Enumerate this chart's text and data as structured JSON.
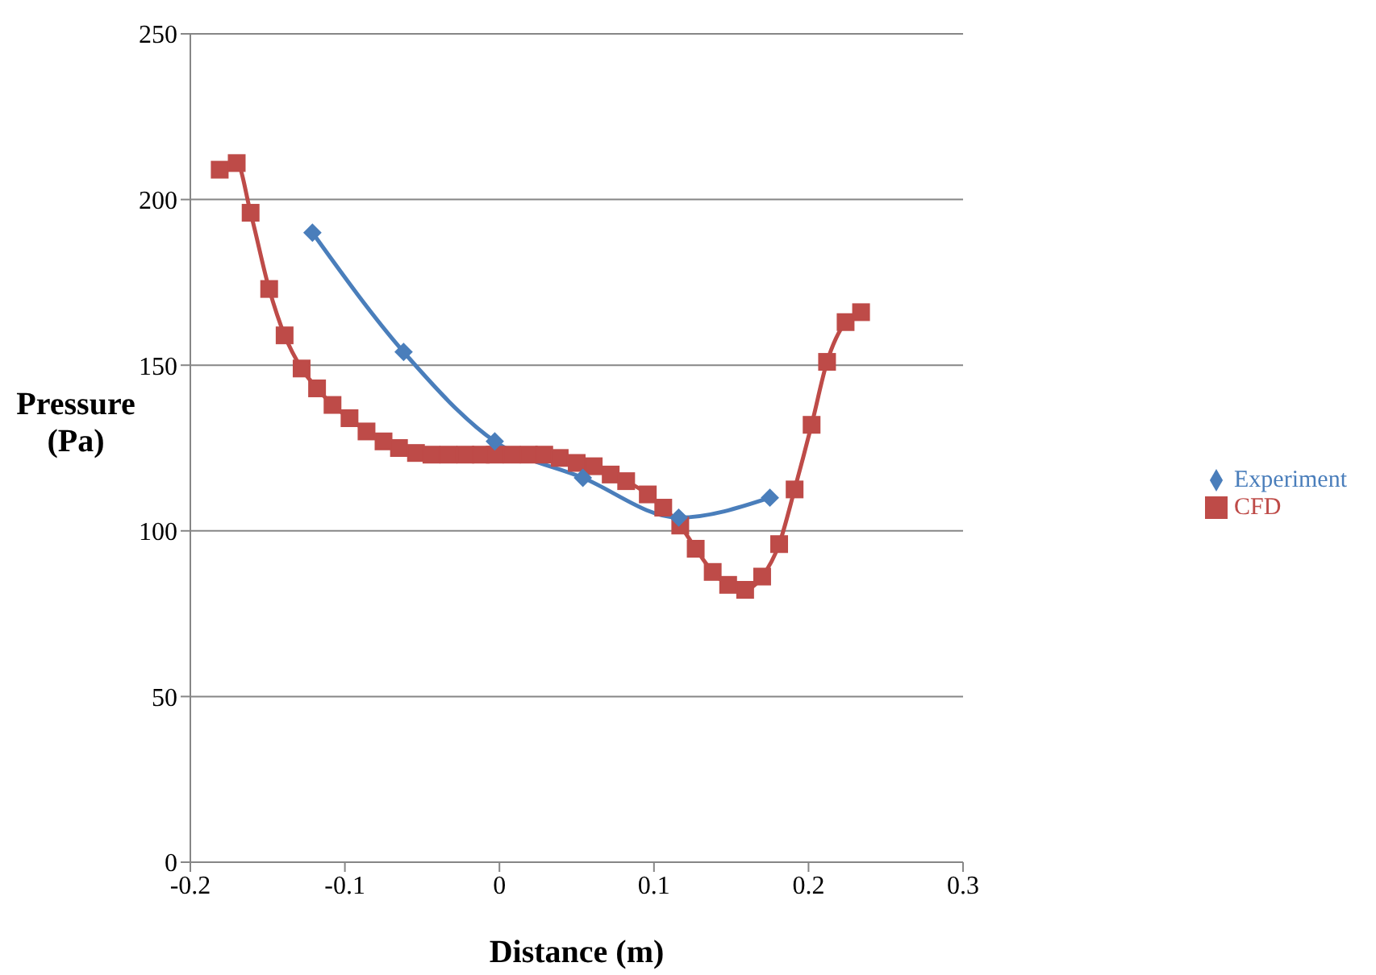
{
  "chart_data": {
    "type": "line",
    "xlabel": "Distance (m)",
    "ylabel": "Pressure (Pa)",
    "xlim": [
      -0.2,
      0.3
    ],
    "xticks": [
      -0.2,
      -0.1,
      0,
      0.1,
      0.2,
      0.3
    ],
    "ylim": [
      0,
      250
    ],
    "yticks": [
      0,
      50,
      100,
      150,
      200,
      250
    ],
    "grid": "y",
    "legend": "right",
    "line_style": "solid",
    "series": [
      {
        "name": "Experiment",
        "color": "#4a7ebb",
        "marker": "diamond",
        "x": [
          -0.121,
          -0.062,
          -0.003,
          0.054,
          0.116,
          0.175
        ],
        "values": [
          190,
          154,
          127,
          116,
          104,
          110
        ]
      },
      {
        "name": "CFD",
        "color": "#be4b48",
        "marker": "square",
        "x": [
          -0.181,
          -0.17,
          -0.161,
          -0.149,
          -0.139,
          -0.128,
          -0.118,
          -0.108,
          -0.097,
          -0.086,
          -0.075,
          -0.065,
          -0.054,
          -0.044,
          -0.033,
          -0.022,
          -0.012,
          -0.003,
          0.008,
          0.019,
          0.029,
          0.039,
          0.05,
          0.061,
          0.072,
          0.082,
          0.096,
          0.106,
          0.117,
          0.127,
          0.138,
          0.148,
          0.159,
          0.17,
          0.181,
          0.191,
          0.202,
          0.212,
          0.224,
          0.234
        ],
        "values": [
          209,
          211,
          196,
          173,
          159,
          149,
          143,
          138,
          134,
          130,
          127,
          125,
          123.5,
          123,
          123,
          123,
          123,
          123,
          123,
          123,
          123,
          122,
          120.5,
          119.5,
          117,
          115,
          111,
          107,
          101.6,
          94.6,
          87.6,
          83.7,
          82.2,
          86.2,
          96,
          112.5,
          132,
          151,
          163,
          166
        ]
      }
    ]
  }
}
